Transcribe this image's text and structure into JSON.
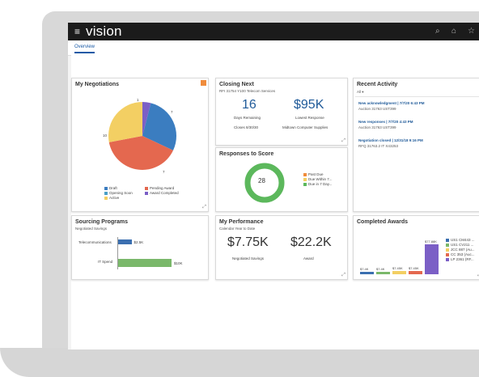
{
  "app": {
    "brand": "vision",
    "menu_icon": "menu-icon",
    "icons": [
      "search-icon",
      "home-icon",
      "star-icon"
    ]
  },
  "tabs": [
    {
      "label": "Overview"
    }
  ],
  "negotiations": {
    "title": "My Negotiations",
    "badge_icon": "notification-icon",
    "pie_labels": {
      "top": "1",
      "right": "7",
      "left": "10",
      "bottom": "7"
    },
    "legend": [
      "Draft",
      "Pending Award",
      "Opening Soon",
      "Award Completed",
      "Active"
    ],
    "colors": {
      "draft": "#3b7dc0",
      "pending": "#7b5fc6",
      "opening": "#f3cf63",
      "completed": "#7b5fc6",
      "active": "#e4684f"
    },
    "chart_data": {
      "type": "pie",
      "categories": [
        "Draft",
        "Active",
        "Opening Soon",
        "Pending Award"
      ],
      "values": [
        7,
        10,
        7,
        1
      ]
    }
  },
  "closing": {
    "title": "Closing Next",
    "subtitle": "RFI 31754 Y100 Telecom Services",
    "days": "16",
    "days_label": "Days Remaining",
    "closes": "Closes 8/30/30",
    "amount": "$95K",
    "amount_label": "Lowest Response",
    "supplier": "Midtown Computer Supplies"
  },
  "responses": {
    "title": "Responses to Score",
    "count": "28",
    "legend": [
      "Past Due",
      "Due Within 7...",
      "Due in 7 Day..."
    ],
    "colors": [
      "#f08c3c",
      "#f3cf63",
      "#5cb85c"
    ]
  },
  "activity": {
    "title": "Recent Activity",
    "filter": "All ▾",
    "items": [
      {
        "title": "New acknowledgment | 7/7/20 6:43 PM",
        "sub": "Auction 31763 UST399"
      },
      {
        "title": "New responses | 7/7/20 4:43 PM",
        "sub": "Auction 31763 UST399"
      },
      {
        "title": "Negotiation closed | 12/31/18 9:16 PM",
        "sub": "RFQ 31763.2 IT X43253"
      }
    ]
  },
  "sourcing": {
    "title": "Sourcing Programs",
    "subtitle": "Negotiated Savings",
    "chart_data": {
      "type": "bar",
      "categories": [
        "Telecommunications",
        "IT Spend"
      ],
      "values": [
        2.5,
        10
      ],
      "labels": [
        "$2.5K",
        "$10K"
      ]
    }
  },
  "performance": {
    "title": "My Performance",
    "subtitle": "Calendar Year to Date",
    "savings": "$7.75K",
    "savings_label": "Negotiated Savings",
    "award": "$22.2K",
    "award_label": "Award"
  },
  "awards": {
    "title": "Completed Awards",
    "legend": [
      "US1 CM443 ...",
      "US1 CV211 ...",
      "JCC 887 (Au...",
      "CC 353 (Auc...",
      "LP 2361 (RF..."
    ],
    "colors": [
      "#3b6fb0",
      "#7ab86a",
      "#f3cf63",
      "#e4684f",
      "#7b5fc6"
    ],
    "chart_data": {
      "type": "bar",
      "categories": [
        "US1 CM443",
        "US1 CV211",
        "JCC 887",
        "CC 353",
        "LP 2361"
      ],
      "values": [
        7.4,
        7.4,
        7.45,
        7.45,
        77.88
      ],
      "labels": [
        "$7.4K",
        "$7.4K",
        "$7.45K",
        "$7.45K",
        "$77.88K"
      ]
    }
  }
}
